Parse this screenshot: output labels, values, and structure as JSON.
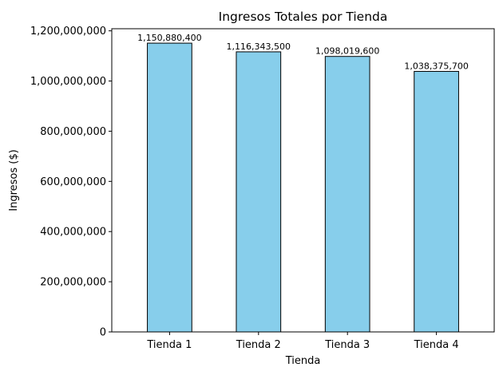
{
  "chart_data": {
    "type": "bar",
    "title": "Ingresos Totales por Tienda",
    "xlabel": "Tienda",
    "ylabel": "Ingresos ($)",
    "categories": [
      "Tienda 1",
      "Tienda 2",
      "Tienda 3",
      "Tienda 4"
    ],
    "values": [
      1150880400,
      1116343500,
      1098019600,
      1038375700
    ],
    "data_labels": [
      "1,150,880,400",
      "1,116,343,500",
      "1,098,019,600",
      "1,038,375,700"
    ],
    "ylim": [
      0,
      1208424420
    ],
    "yticks": [
      0,
      200000000,
      400000000,
      600000000,
      800000000,
      1000000000,
      1200000000
    ],
    "ytick_labels": [
      "0",
      "200,000,000",
      "400,000,000",
      "600,000,000",
      "800,000,000",
      "1,000,000,000",
      "1,200,000,000"
    ],
    "grid": false,
    "bar_color": "#87ceeb",
    "bar_edge_color": "#000000"
  }
}
